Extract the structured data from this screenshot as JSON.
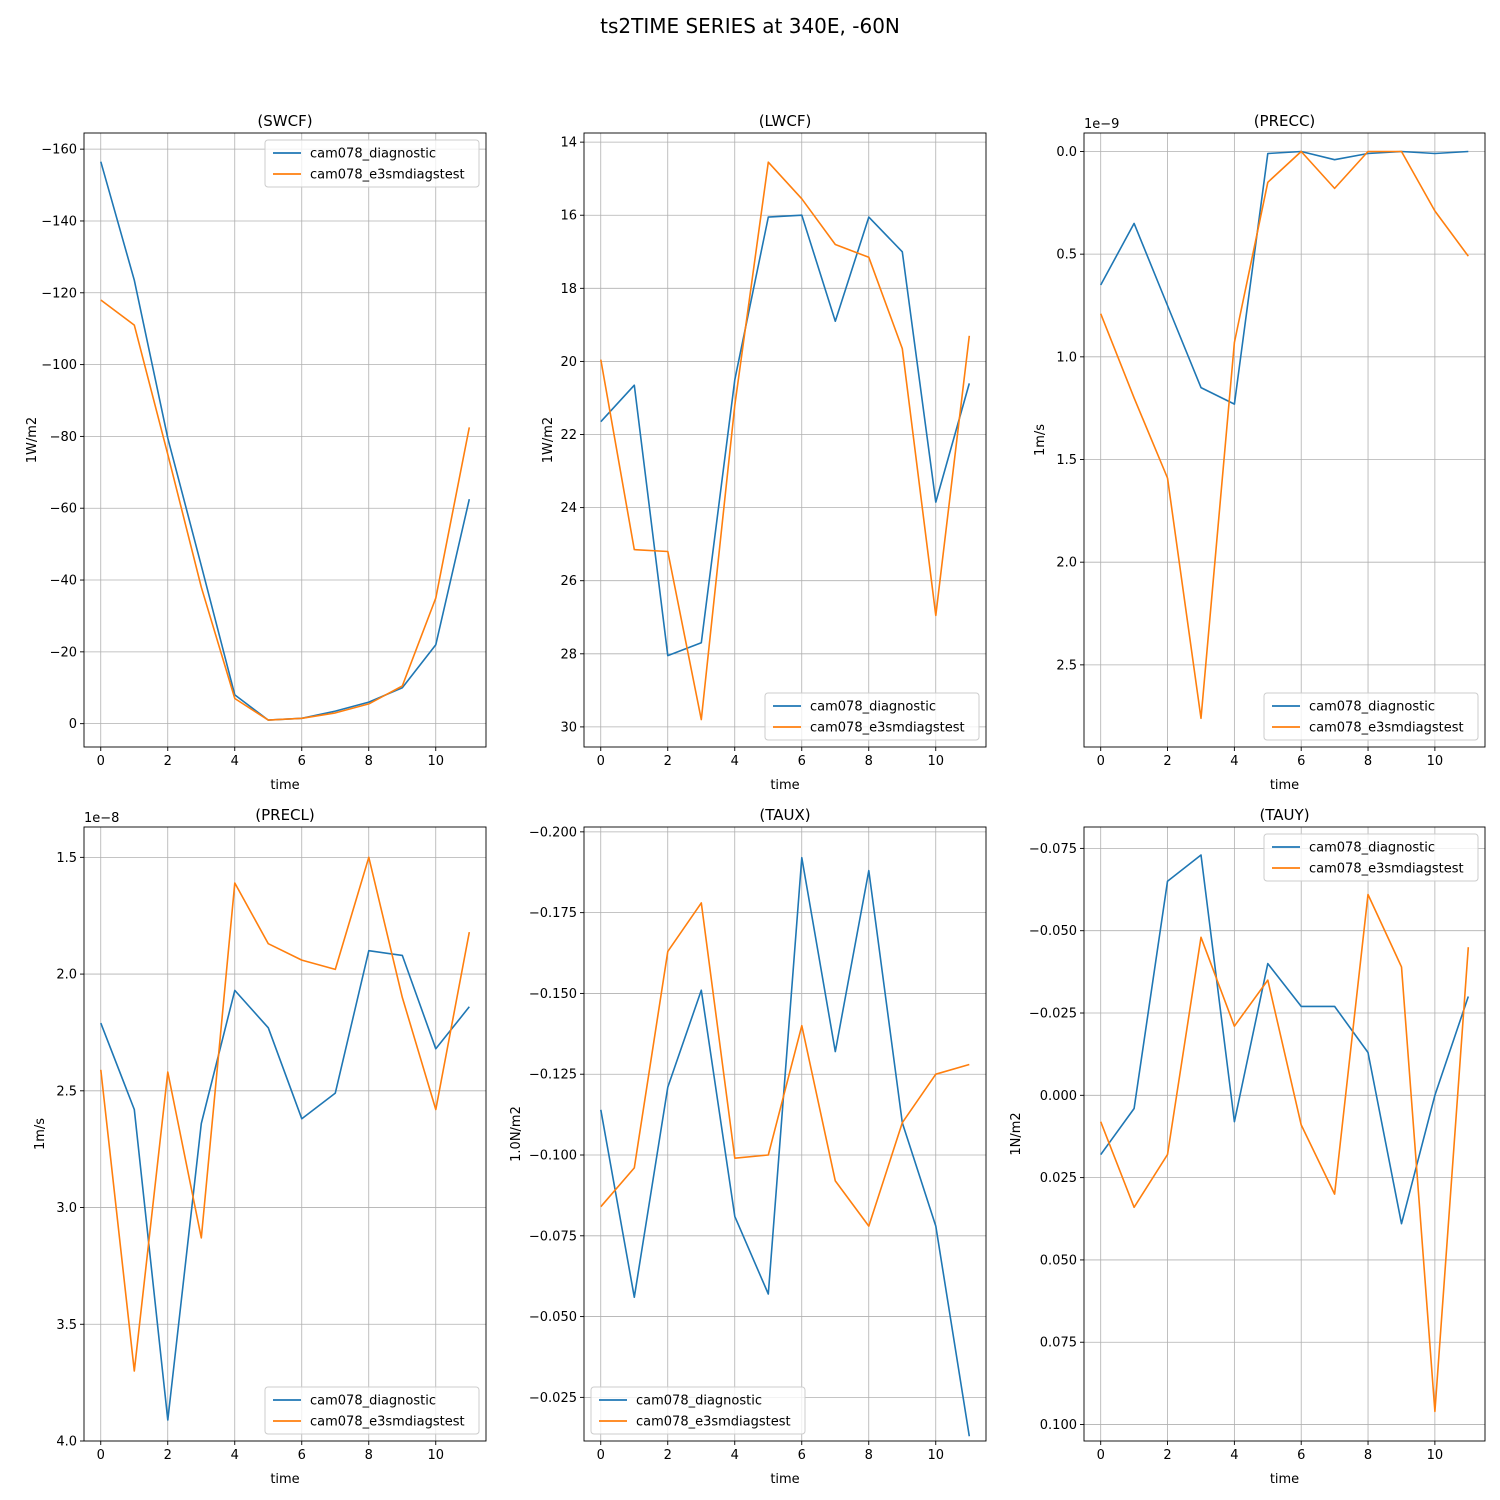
{
  "figure": {
    "title": "ts2TIME SERIES at 340E, -60N",
    "series_colors": [
      "#1f77b4",
      "#ff7f0e"
    ]
  },
  "chart_data": [
    {
      "type": "line",
      "title": "(SWCF)",
      "xlabel": "time",
      "ylabel": "1W/m2",
      "offset_text": "",
      "x": [
        0,
        1,
        2,
        3,
        4,
        5,
        6,
        7,
        8,
        9,
        10,
        11
      ],
      "xticks": [
        0,
        2,
        4,
        6,
        8,
        10
      ],
      "xlim": [
        -0.5,
        11.5
      ],
      "ylim": [
        6.5,
        -164.5
      ],
      "y_inverted": true,
      "yticks": [
        0,
        -20,
        -40,
        -60,
        -80,
        -100,
        -120,
        -140,
        -160
      ],
      "ytick_labels": [
        "0",
        "−20",
        "−40",
        "−60",
        "−80",
        "−100",
        "−120",
        "−140",
        "−160"
      ],
      "grid": true,
      "legend_loc": "upper right",
      "series": [
        {
          "name": "cam078_diagnostic",
          "color": "#1f77b4",
          "values": [
            -156.5,
            -123.5,
            -79.5,
            -44,
            -8,
            -1,
            -1.5,
            -3.5,
            -6,
            -10,
            -22,
            -62.5
          ]
        },
        {
          "name": "cam078_e3smdiagstest",
          "color": "#ff7f0e",
          "values": [
            -118,
            -111,
            -75,
            -38,
            -7,
            -1,
            -1.5,
            -3,
            -5.5,
            -10.5,
            -35,
            -82.5
          ]
        }
      ]
    },
    {
      "type": "line",
      "title": "(LWCF)",
      "xlabel": "time",
      "ylabel": "1W/m2",
      "offset_text": "",
      "x": [
        0,
        1,
        2,
        3,
        4,
        5,
        6,
        7,
        8,
        9,
        10,
        11
      ],
      "xticks": [
        0,
        2,
        4,
        6,
        8,
        10
      ],
      "xlim": [
        -0.5,
        11.5
      ],
      "ylim": [
        30.55,
        13.75
      ],
      "y_inverted": true,
      "yticks": [
        14,
        16,
        18,
        20,
        22,
        24,
        26,
        28,
        30
      ],
      "ytick_labels": [
        "14",
        "16",
        "18",
        "20",
        "22",
        "24",
        "26",
        "28",
        "30"
      ],
      "grid": true,
      "legend_loc": "lower right",
      "series": [
        {
          "name": "cam078_diagnostic",
          "color": "#1f77b4",
          "values": [
            21.65,
            20.65,
            28.05,
            27.7,
            20.5,
            16.05,
            16,
            18.9,
            16.05,
            17,
            23.85,
            20.6
          ]
        },
        {
          "name": "cam078_e3smdiagstest",
          "color": "#ff7f0e",
          "values": [
            19.95,
            25.15,
            25.2,
            29.8,
            21.2,
            14.55,
            15.55,
            16.8,
            17.15,
            19.65,
            26.95,
            19.3
          ]
        }
      ]
    },
    {
      "type": "line",
      "title": "(PRECC)",
      "xlabel": "time",
      "ylabel": "1m/s",
      "offset_text": "1e−9",
      "x": [
        0,
        1,
        2,
        3,
        4,
        5,
        6,
        7,
        8,
        9,
        10,
        11
      ],
      "xticks": [
        0,
        2,
        4,
        6,
        8,
        10
      ],
      "xlim": [
        -0.5,
        11.5
      ],
      "ylim": [
        2.9,
        -0.09
      ],
      "y_inverted": true,
      "yticks": [
        0,
        0.5,
        1,
        1.5,
        2,
        2.5
      ],
      "ytick_labels": [
        "0.0",
        "0.5",
        "1.0",
        "1.5",
        "2.0",
        "2.5"
      ],
      "grid": true,
      "legend_loc": "lower right",
      "series": [
        {
          "name": "cam078_diagnostic",
          "color": "#1f77b4",
          "values": [
            0.65,
            0.35,
            0.75,
            1.15,
            1.23,
            0.01,
            0,
            0.04,
            0.01,
            0,
            0.01,
            0
          ]
        },
        {
          "name": "cam078_e3smdiagstest",
          "color": "#ff7f0e",
          "values": [
            0.79,
            1.2,
            1.59,
            2.76,
            0.93,
            0.15,
            0,
            0.18,
            0,
            0,
            0.29,
            0.51
          ]
        }
      ]
    },
    {
      "type": "line",
      "title": "(PRECL)",
      "xlabel": "time",
      "ylabel": "1m/s",
      "offset_text": "1e−8",
      "x": [
        0,
        1,
        2,
        3,
        4,
        5,
        6,
        7,
        8,
        9,
        10,
        11
      ],
      "xticks": [
        0,
        2,
        4,
        6,
        8,
        10
      ],
      "xlim": [
        -0.5,
        11.5
      ],
      "ylim": [
        4.0,
        1.37
      ],
      "y_inverted": true,
      "yticks": [
        1.5,
        2,
        2.5,
        3,
        3.5,
        4
      ],
      "ytick_labels": [
        "1.5",
        "2.0",
        "2.5",
        "3.0",
        "3.5",
        "4.0"
      ],
      "grid": true,
      "legend_loc": "lower right",
      "series": [
        {
          "name": "cam078_diagnostic",
          "color": "#1f77b4",
          "values": [
            2.21,
            2.58,
            3.91,
            2.64,
            2.07,
            2.23,
            2.62,
            2.51,
            1.9,
            1.92,
            2.32,
            2.14
          ]
        },
        {
          "name": "cam078_e3smdiagstest",
          "color": "#ff7f0e",
          "values": [
            2.41,
            3.7,
            2.42,
            3.13,
            1.61,
            1.87,
            1.94,
            1.98,
            1.5,
            2.1,
            2.58,
            1.82
          ]
        }
      ]
    },
    {
      "type": "line",
      "title": "(TAUX)",
      "xlabel": "time",
      "ylabel": "1.0N/m2",
      "offset_text": "",
      "x": [
        0,
        1,
        2,
        3,
        4,
        5,
        6,
        7,
        8,
        9,
        10,
        11
      ],
      "xticks": [
        0,
        2,
        4,
        6,
        8,
        10
      ],
      "xlim": [
        -0.5,
        11.5
      ],
      "ylim": [
        -0.0115,
        -0.2015
      ],
      "y_inverted": true,
      "yticks": [
        -0.2,
        -0.175,
        -0.15,
        -0.125,
        -0.1,
        -0.075,
        -0.05,
        -0.025
      ],
      "ytick_labels": [
        "−0.200",
        "−0.175",
        "−0.150",
        "−0.125",
        "−0.100",
        "−0.075",
        "−0.050",
        "−0.025"
      ],
      "grid": true,
      "legend_loc": "lower left",
      "series": [
        {
          "name": "cam078_diagnostic",
          "color": "#1f77b4",
          "values": [
            -0.114,
            -0.056,
            -0.121,
            -0.151,
            -0.081,
            -0.057,
            -0.192,
            -0.132,
            -0.188,
            -0.11,
            -0.078,
            -0.013
          ]
        },
        {
          "name": "cam078_e3smdiagstest",
          "color": "#ff7f0e",
          "values": [
            -0.084,
            -0.096,
            -0.163,
            -0.178,
            -0.099,
            -0.1,
            -0.14,
            -0.092,
            -0.078,
            -0.11,
            -0.125,
            -0.128
          ]
        }
      ]
    },
    {
      "type": "line",
      "title": "(TAUY)",
      "xlabel": "time",
      "ylabel": "1N/m2",
      "offset_text": "",
      "x": [
        0,
        1,
        2,
        3,
        4,
        5,
        6,
        7,
        8,
        9,
        10,
        11
      ],
      "xticks": [
        0,
        2,
        4,
        6,
        8,
        10
      ],
      "xlim": [
        -0.5,
        11.5
      ],
      "ylim": [
        0.105,
        -0.0815
      ],
      "y_inverted": true,
      "yticks": [
        -0.075,
        -0.05,
        -0.025,
        0,
        0.025,
        0.05,
        0.075,
        0.1
      ],
      "ytick_labels": [
        "−0.075",
        "−0.050",
        "−0.025",
        "0.000",
        "0.025",
        "0.050",
        "0.075",
        "0.100"
      ],
      "grid": true,
      "legend_loc": "upper right",
      "series": [
        {
          "name": "cam078_diagnostic",
          "color": "#1f77b4",
          "values": [
            0.018,
            0.004,
            -0.065,
            -0.073,
            0.008,
            -0.04,
            -0.027,
            -0.027,
            -0.013,
            0.039,
            0,
            -0.03
          ]
        },
        {
          "name": "cam078_e3smdiagstest",
          "color": "#ff7f0e",
          "values": [
            0.008,
            0.034,
            0.018,
            -0.048,
            -0.021,
            -0.035,
            0.009,
            0.03,
            -0.061,
            -0.039,
            0.096,
            -0.045
          ]
        }
      ]
    }
  ]
}
